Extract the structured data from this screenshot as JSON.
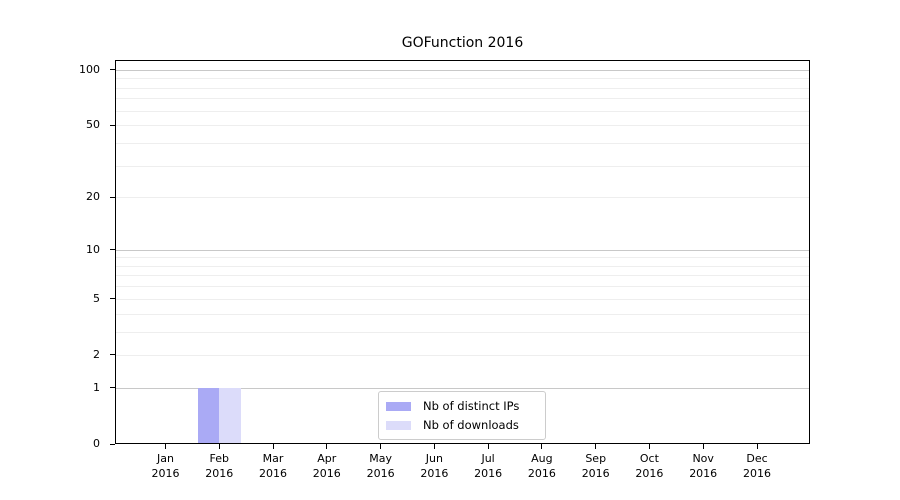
{
  "chart_data": {
    "type": "bar",
    "title": "GOFunction 2016",
    "xlabel": "",
    "ylabel": "",
    "categories": [
      "Jan",
      "Feb",
      "Mar",
      "Apr",
      "May",
      "Jun",
      "Jul",
      "Aug",
      "Sep",
      "Oct",
      "Nov",
      "Dec"
    ],
    "category_sublabel": "2016",
    "series": [
      {
        "name": "Nb of distinct IPs",
        "color": "#aaaaf5",
        "values": [
          0,
          1,
          0,
          0,
          0,
          0,
          0,
          0,
          0,
          0,
          0,
          0
        ]
      },
      {
        "name": "Nb of downloads",
        "color": "#dcdcfa",
        "values": [
          0,
          1,
          0,
          0,
          0,
          0,
          0,
          0,
          0,
          0,
          0,
          0
        ]
      }
    ],
    "y_scale": "log1p",
    "ylim": [
      0,
      113
    ],
    "y_ticks": [
      0,
      1,
      2,
      5,
      10,
      20,
      50,
      100
    ],
    "y_major_gridlines": [
      1,
      10,
      100
    ],
    "y_minor_gridlines": [
      2,
      3,
      4,
      5,
      6,
      7,
      8,
      9,
      20,
      30,
      40,
      50,
      60,
      70,
      80,
      90
    ],
    "grid": "horizontal",
    "legend_position": "lower center inside plot"
  },
  "colors": {
    "background": "#ffffff",
    "axis": "#000000",
    "major_grid": "#c8c8c8",
    "minor_grid": "#eeeeee",
    "legend_border": "#cccccc",
    "text": "#000000"
  }
}
